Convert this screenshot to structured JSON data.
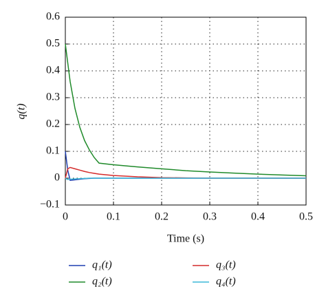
{
  "chart_data": {
    "type": "line",
    "ylabel": "q(t)",
    "xlabel": "Time (s)",
    "x": [
      0,
      0.005,
      0.01,
      0.02,
      0.03,
      0.04,
      0.05,
      0.06,
      0.07,
      0.1,
      0.15,
      0.2,
      0.25,
      0.3,
      0.35,
      0.4,
      0.45,
      0.5
    ],
    "series": [
      {
        "name": "q₁(t)",
        "color": "#1f3fb0",
        "values": [
          0.1,
          0.03,
          -0.008,
          -0.006,
          -0.004,
          -0.002,
          -0.001,
          0,
          0,
          0,
          0,
          0,
          0,
          0,
          0,
          0,
          0,
          0
        ]
      },
      {
        "name": "q₂(t)",
        "color": "#1f8a2a",
        "values": [
          0.5,
          0.43,
          0.36,
          0.26,
          0.19,
          0.14,
          0.105,
          0.077,
          0.056,
          0.05,
          0.042,
          0.035,
          0.028,
          0.023,
          0.019,
          0.015,
          0.012,
          0.009
        ]
      },
      {
        "name": "q₃(t)",
        "color": "#d42a2a",
        "values": [
          0,
          0.035,
          0.04,
          0.035,
          0.03,
          0.025,
          0.021,
          0.018,
          0.015,
          0.01,
          0.005,
          0.002,
          0.001,
          0,
          0,
          0,
          0,
          0
        ]
      },
      {
        "name": "q₄(t)",
        "color": "#3ab8d8",
        "values": [
          0,
          -0.005,
          -0.004,
          -0.003,
          -0.002,
          -0.001,
          0,
          0,
          0,
          0,
          0,
          0,
          0,
          0,
          0,
          0,
          0,
          0
        ]
      }
    ],
    "xlim": [
      0,
      0.5
    ],
    "xticks": [
      0,
      0.1,
      0.2,
      0.3,
      0.4,
      0.5
    ],
    "ylim": [
      -0.1,
      0.6
    ],
    "yticks": [
      {
        "value": -0.1,
        "label": "−0.1"
      },
      0,
      0.1,
      0.2,
      0.3,
      0.4,
      0.5,
      0.6
    ],
    "grid": true
  }
}
